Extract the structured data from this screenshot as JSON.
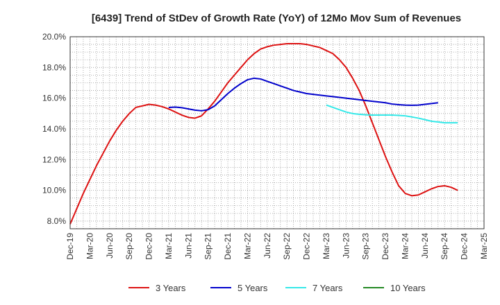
{
  "chart_data": {
    "type": "line",
    "title": "[6439]  Trend of StDev of Growth Rate (YoY) of 12Mo Mov Sum of Revenues",
    "xlabel": "",
    "ylabel": "",
    "ylim": [
      7.5,
      20.0
    ],
    "y_ticks": [
      8.0,
      10.0,
      12.0,
      14.0,
      16.0,
      18.0,
      20.0
    ],
    "y_tick_labels": [
      "8.0%",
      "10.0%",
      "12.0%",
      "14.0%",
      "16.0%",
      "18.0%",
      "20.0%"
    ],
    "x_tick_labels": [
      "Dec-19",
      "Mar-20",
      "Jun-20",
      "Sep-20",
      "Dec-20",
      "Mar-21",
      "Jun-21",
      "Sep-21",
      "Dec-21",
      "Mar-22",
      "Jun-22",
      "Sep-22",
      "Dec-22",
      "Mar-23",
      "Jun-23",
      "Sep-23",
      "Dec-23",
      "Mar-24",
      "Jun-24",
      "Sep-24",
      "Dec-24",
      "Mar-25"
    ],
    "x_count_months": 63,
    "grid": true,
    "legend_position": "bottom",
    "series": [
      {
        "name": "3 Years",
        "color": "#dd1111",
        "start_month": 0,
        "values": [
          7.8,
          8.8,
          9.8,
          10.7,
          11.6,
          12.4,
          13.2,
          13.9,
          14.5,
          15.0,
          15.4,
          15.5,
          15.6,
          15.55,
          15.45,
          15.3,
          15.1,
          14.9,
          14.75,
          14.7,
          14.85,
          15.3,
          15.8,
          16.4,
          17.0,
          17.5,
          18.0,
          18.5,
          18.9,
          19.2,
          19.35,
          19.45,
          19.5,
          19.55,
          19.55,
          19.55,
          19.5,
          19.4,
          19.3,
          19.1,
          18.9,
          18.5,
          18.0,
          17.3,
          16.5,
          15.5,
          14.4,
          13.3,
          12.2,
          11.2,
          10.3,
          9.8,
          9.65,
          9.7,
          9.9,
          10.1,
          10.25,
          10.3,
          10.2,
          10.0
        ]
      },
      {
        "name": "5 Years",
        "color": "#0000cc",
        "start_month": 15,
        "values": [
          15.4,
          15.42,
          15.38,
          15.3,
          15.22,
          15.18,
          15.25,
          15.5,
          15.9,
          16.3,
          16.65,
          16.95,
          17.2,
          17.3,
          17.25,
          17.1,
          16.95,
          16.8,
          16.65,
          16.5,
          16.4,
          16.3,
          16.25,
          16.2,
          16.15,
          16.1,
          16.05,
          16.0,
          15.95,
          15.9,
          15.85,
          15.8,
          15.75,
          15.7,
          15.62,
          15.58,
          15.55,
          15.54,
          15.55,
          15.6,
          15.65,
          15.7
        ]
      },
      {
        "name": "7 Years",
        "color": "#33e8e8",
        "start_month": 39,
        "values": [
          15.55,
          15.4,
          15.25,
          15.1,
          15.0,
          14.95,
          14.92,
          14.9,
          14.9,
          14.9,
          14.9,
          14.88,
          14.85,
          14.78,
          14.7,
          14.6,
          14.5,
          14.45,
          14.4,
          14.4,
          14.4
        ]
      },
      {
        "name": "10 Years",
        "color": "#228822",
        "start_month": 63,
        "values": []
      }
    ]
  }
}
